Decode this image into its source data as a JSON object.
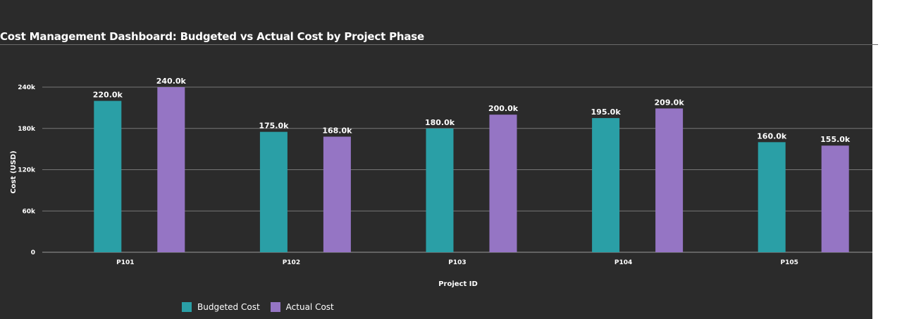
{
  "chart_data": {
    "type": "bar",
    "title": "Cost Management Dashboard: Budgeted vs Actual Cost by Project Phase",
    "xlabel": "Project ID",
    "ylabel": "Cost (USD)",
    "ylim": [
      0,
      240000
    ],
    "yticks": [
      0,
      60000,
      120000,
      180000,
      240000
    ],
    "ytick_labels": [
      "0",
      "60k",
      "120k",
      "180k",
      "240k"
    ],
    "categories": [
      "P101",
      "P102",
      "P103",
      "P104",
      "P105"
    ],
    "series": [
      {
        "name": "Budgeted Cost",
        "color": "#2a9fa6",
        "values": [
          220000,
          175000,
          180000,
          195000,
          160000
        ],
        "labels": [
          "220.0k",
          "175.0k",
          "180.0k",
          "195.0k",
          "160.0k"
        ]
      },
      {
        "name": "Actual Cost",
        "color": "#9575c4",
        "values": [
          240000,
          168000,
          200000,
          209000,
          155000
        ],
        "labels": [
          "240.0k",
          "168.0k",
          "200.0k",
          "209.0k",
          "155.0k"
        ]
      }
    ],
    "grid": true,
    "legend_position": "bottom-left"
  }
}
